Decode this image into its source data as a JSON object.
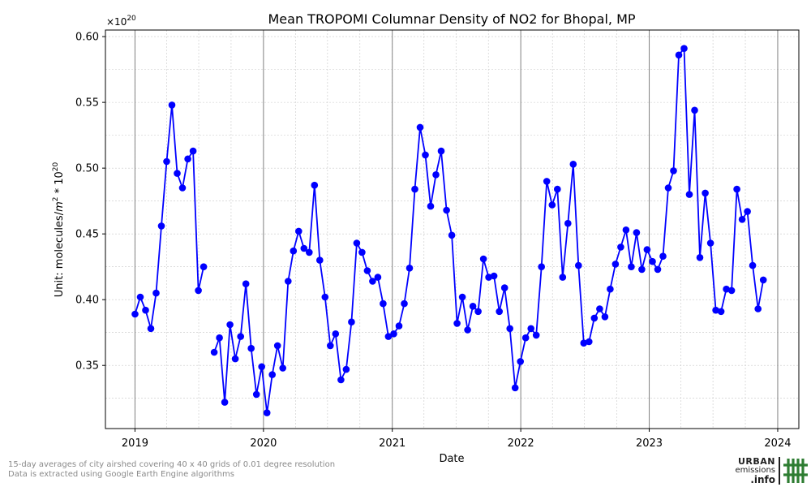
{
  "chart_data": {
    "type": "line",
    "title": "Mean TROPOMI Columnar Density of NO2 for Bhopal, MP",
    "xlabel": "Date",
    "ylabel_prefix": "Unit: molecules/",
    "ylabel_m": "m",
    "ylabel_mid": " * 10",
    "ylabel_sup": "2",
    "ylabel_sup2": "20",
    "y_offset_base": "×10",
    "y_offset_exp": "20",
    "xlim": [
      "2018-10-09",
      "2024-03-01"
    ],
    "ylim": [
      0.302,
      0.605
    ],
    "x_ticks": [
      "2019-01-01",
      "2020-01-01",
      "2021-01-01",
      "2022-01-01",
      "2023-01-01",
      "2024-01-01"
    ],
    "x_tick_labels": [
      "2019",
      "2020",
      "2021",
      "2022",
      "2023",
      "2024"
    ],
    "y_ticks": [
      0.35,
      0.4,
      0.45,
      0.5,
      0.55,
      0.6
    ],
    "y_tick_labels": [
      "0.35",
      "0.40",
      "0.45",
      "0.50",
      "0.55",
      "0.60"
    ],
    "grid": true,
    "series_color": "#0000ff",
    "series": [
      {
        "segments": [
          [
            [
              "2019-01-01",
              0.389
            ],
            [
              "2019-01-16",
              0.402
            ],
            [
              "2019-01-31",
              0.392
            ],
            [
              "2019-02-15",
              0.378
            ],
            [
              "2019-03-02",
              0.405
            ],
            [
              "2019-03-17",
              0.456
            ],
            [
              "2019-04-01",
              0.505
            ],
            [
              "2019-04-16",
              0.548
            ],
            [
              "2019-05-01",
              0.496
            ],
            [
              "2019-05-16",
              0.485
            ],
            [
              "2019-05-31",
              0.507
            ],
            [
              "2019-06-15",
              0.513
            ],
            [
              "2019-06-30",
              0.407
            ],
            [
              "2019-07-15",
              0.425
            ]
          ],
          [
            [
              "2019-08-14",
              0.36
            ],
            [
              "2019-08-29",
              0.371
            ],
            [
              "2019-09-13",
              0.322
            ],
            [
              "2019-09-28",
              0.381
            ],
            [
              "2019-10-13",
              0.355
            ],
            [
              "2019-10-28",
              0.372
            ],
            [
              "2019-11-12",
              0.412
            ],
            [
              "2019-11-27",
              0.363
            ],
            [
              "2019-12-12",
              0.328
            ],
            [
              "2019-12-27",
              0.349
            ],
            [
              "2020-01-11",
              0.314
            ],
            [
              "2020-01-26",
              0.343
            ],
            [
              "2020-02-10",
              0.365
            ],
            [
              "2020-02-25",
              0.348
            ],
            [
              "2020-03-11",
              0.414
            ],
            [
              "2020-03-26",
              0.437
            ],
            [
              "2020-04-10",
              0.452
            ],
            [
              "2020-04-25",
              0.439
            ],
            [
              "2020-05-10",
              0.436
            ],
            [
              "2020-05-25",
              0.487
            ],
            [
              "2020-06-09",
              0.43
            ],
            [
              "2020-06-24",
              0.402
            ],
            [
              "2020-07-09",
              0.365
            ],
            [
              "2020-07-24",
              0.374
            ],
            [
              "2020-08-08",
              0.339
            ],
            [
              "2020-08-23",
              0.347
            ],
            [
              "2020-09-07",
              0.383
            ],
            [
              "2020-09-22",
              0.443
            ],
            [
              "2020-10-07",
              0.436
            ],
            [
              "2020-10-22",
              0.422
            ],
            [
              "2020-11-06",
              0.414
            ],
            [
              "2020-11-21",
              0.417
            ],
            [
              "2020-12-06",
              0.397
            ],
            [
              "2020-12-21",
              0.372
            ],
            [
              "2021-01-05",
              0.374
            ],
            [
              "2021-01-20",
              0.38
            ],
            [
              "2021-02-04",
              0.397
            ],
            [
              "2021-02-19",
              0.424
            ],
            [
              "2021-03-06",
              0.484
            ],
            [
              "2021-03-21",
              0.531
            ],
            [
              "2021-04-05",
              0.51
            ],
            [
              "2021-04-20",
              0.471
            ],
            [
              "2021-05-05",
              0.495
            ],
            [
              "2021-05-20",
              0.513
            ],
            [
              "2021-06-04",
              0.468
            ],
            [
              "2021-06-19",
              0.449
            ],
            [
              "2021-07-04",
              0.382
            ],
            [
              "2021-07-19",
              0.402
            ],
            [
              "2021-08-03",
              0.377
            ],
            [
              "2021-08-18",
              0.395
            ],
            [
              "2021-09-02",
              0.391
            ],
            [
              "2021-09-17",
              0.431
            ],
            [
              "2021-10-02",
              0.417
            ],
            [
              "2021-10-17",
              0.418
            ],
            [
              "2021-11-01",
              0.391
            ],
            [
              "2021-11-16",
              0.409
            ],
            [
              "2021-12-01",
              0.378
            ],
            [
              "2021-12-16",
              0.333
            ],
            [
              "2021-12-31",
              0.353
            ],
            [
              "2022-01-15",
              0.371
            ],
            [
              "2022-01-30",
              0.378
            ],
            [
              "2022-02-14",
              0.373
            ],
            [
              "2022-03-01",
              0.425
            ],
            [
              "2022-03-16",
              0.49
            ],
            [
              "2022-03-31",
              0.472
            ],
            [
              "2022-04-15",
              0.484
            ],
            [
              "2022-04-30",
              0.417
            ],
            [
              "2022-05-15",
              0.458
            ],
            [
              "2022-05-30",
              0.503
            ],
            [
              "2022-06-14",
              0.426
            ],
            [
              "2022-06-29",
              0.367
            ],
            [
              "2022-07-14",
              0.368
            ],
            [
              "2022-07-29",
              0.386
            ],
            [
              "2022-08-13",
              0.393
            ],
            [
              "2022-08-28",
              0.387
            ],
            [
              "2022-09-12",
              0.408
            ],
            [
              "2022-09-27",
              0.427
            ],
            [
              "2022-10-12",
              0.44
            ],
            [
              "2022-10-27",
              0.453
            ],
            [
              "2022-11-11",
              0.425
            ],
            [
              "2022-11-26",
              0.451
            ],
            [
              "2022-12-11",
              0.423
            ],
            [
              "2022-12-26",
              0.438
            ],
            [
              "2023-01-10",
              0.429
            ],
            [
              "2023-01-25",
              0.423
            ],
            [
              "2023-02-09",
              0.433
            ],
            [
              "2023-02-24",
              0.485
            ],
            [
              "2023-03-11",
              0.498
            ],
            [
              "2023-03-26",
              0.586
            ],
            [
              "2023-04-10",
              0.591
            ],
            [
              "2023-04-25",
              0.48
            ],
            [
              "2023-05-10",
              0.544
            ],
            [
              "2023-05-25",
              0.432
            ],
            [
              "2023-06-09",
              0.481
            ],
            [
              "2023-06-24",
              0.443
            ],
            [
              "2023-07-09",
              0.392
            ],
            [
              "2023-07-24",
              0.391
            ],
            [
              "2023-08-08",
              0.408
            ],
            [
              "2023-08-23",
              0.407
            ],
            [
              "2023-09-07",
              0.484
            ],
            [
              "2023-09-22",
              0.461
            ],
            [
              "2023-10-07",
              0.467
            ],
            [
              "2023-10-22",
              0.426
            ],
            [
              "2023-11-06",
              0.393
            ],
            [
              "2023-11-21",
              0.415
            ]
          ]
        ]
      }
    ]
  },
  "footnotes": {
    "line1": "15-day averages of city airshed covering 40 x 40 grids of 0.01 degree resolution",
    "line2": "Data is extracted using Google Earth Engine algorithms"
  },
  "logo": {
    "line1": "URBAN",
    "line2": "emissions",
    "line3": ".info",
    "mark_icon": "hash-grid-icon",
    "color": "#1f1f1f",
    "mark_color": "#2e7d32"
  }
}
